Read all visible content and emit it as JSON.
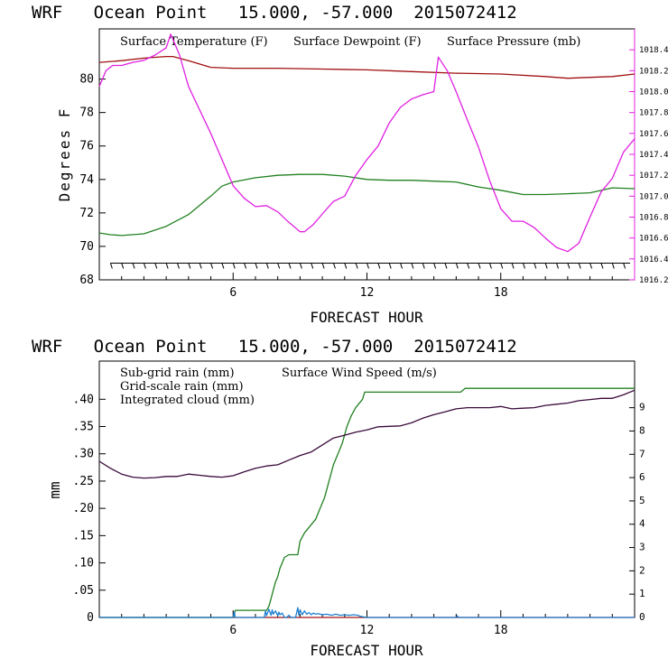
{
  "colors": {
    "temperature": "#a01010",
    "dewpoint": "#208020",
    "pressure": "#e020e0",
    "subgrid": "#a01010",
    "gridscale": "#208020",
    "cloud": "#1e7fd0",
    "wind": "#3a0a3a",
    "axis": "#000000"
  },
  "chart_data": [
    {
      "type": "line",
      "title": "WRF   Ocean Point   15.000, -57.000  2015072412",
      "xlabel": "FORECAST HOUR",
      "ylabel": "Degrees F",
      "xlim": [
        0,
        24
      ],
      "ylim": [
        68,
        83
      ],
      "y2lim": [
        1016.2,
        1018.6
      ],
      "xticks": [
        "6",
        "12",
        "18"
      ],
      "yticks": [
        "68",
        "70",
        "72",
        "74",
        "76",
        "78",
        "80"
      ],
      "y2ticks": [
        "1016.2",
        "1016.4",
        "1016.6",
        "1016.8",
        "1017.0",
        "1017.2",
        "1017.4",
        "1017.6",
        "1017.8",
        "1018.0",
        "1018.2",
        "1018.4"
      ],
      "legend": [
        "Surface Temperature (F)",
        "Surface Dewpoint (F)",
        "Surface Pressure (mb)"
      ],
      "series": [
        {
          "name": "Surface Temperature (F)",
          "axis": "left",
          "x": [
            0,
            1,
            2,
            3,
            3.3,
            4,
            5,
            6,
            8,
            10,
            12,
            14,
            16,
            18,
            20,
            21,
            22,
            23,
            24
          ],
          "values": [
            81.0,
            81.1,
            81.25,
            81.35,
            81.35,
            81.1,
            80.7,
            80.65,
            80.65,
            80.6,
            80.55,
            80.45,
            80.35,
            80.3,
            80.15,
            80.05,
            80.1,
            80.15,
            80.3
          ]
        },
        {
          "name": "Surface Dewpoint (F)",
          "axis": "left",
          "x": [
            0,
            0.5,
            1,
            2,
            3,
            4,
            5,
            5.5,
            6,
            7,
            8,
            9,
            10,
            11,
            12,
            13,
            14,
            15,
            16,
            17,
            18,
            19,
            20,
            21,
            22,
            23,
            24
          ],
          "values": [
            70.8,
            70.7,
            70.65,
            70.75,
            71.2,
            71.9,
            73.0,
            73.6,
            73.85,
            74.1,
            74.25,
            74.3,
            74.3,
            74.2,
            74.0,
            73.95,
            73.95,
            73.9,
            73.85,
            73.55,
            73.35,
            73.1,
            73.1,
            73.15,
            73.2,
            73.5,
            73.45
          ]
        },
        {
          "name": "Surface Pressure (mb)",
          "axis": "right",
          "x": [
            0,
            0.3,
            0.6,
            1,
            1.5,
            2,
            2.5,
            3,
            3.2,
            3.6,
            4,
            5,
            6,
            6.5,
            7,
            7.5,
            8,
            8.5,
            9,
            9.2,
            9.6,
            10,
            10.5,
            11,
            11.5,
            12,
            12.5,
            13,
            13.5,
            14,
            14.5,
            15,
            15.2,
            15.6,
            16,
            16.5,
            17,
            17.5,
            18,
            18.5,
            19,
            19.5,
            20,
            20.5,
            21,
            21.5,
            22,
            22.5,
            23,
            23.5,
            24
          ],
          "values": [
            1018.05,
            1018.2,
            1018.25,
            1018.25,
            1018.28,
            1018.3,
            1018.35,
            1018.42,
            1018.55,
            1018.35,
            1018.05,
            1017.6,
            1017.1,
            1016.98,
            1016.9,
            1016.91,
            1016.85,
            1016.75,
            1016.66,
            1016.66,
            1016.73,
            1016.83,
            1016.95,
            1017.0,
            1017.2,
            1017.35,
            1017.48,
            1017.7,
            1017.85,
            1017.93,
            1017.97,
            1018.0,
            1018.33,
            1018.2,
            1018.0,
            1017.73,
            1017.47,
            1017.15,
            1016.88,
            1016.76,
            1016.76,
            1016.7,
            1016.6,
            1016.51,
            1016.47,
            1016.55,
            1016.8,
            1017.04,
            1017.17,
            1017.42,
            1017.55
          ]
        }
      ],
      "wind_barbs_y": 69,
      "wind_barb_hours": [
        0.5,
        1,
        1.5,
        2,
        2.5,
        3,
        3.5,
        4,
        4.5,
        5,
        5.5,
        6,
        6.5,
        7,
        7.5,
        8,
        8.5,
        9,
        9.5,
        10,
        10.5,
        11,
        11.5,
        12,
        12.5,
        13,
        13.5,
        14,
        14.5,
        15,
        15.5,
        16,
        16.5,
        17,
        17.5,
        18,
        18.5,
        19,
        19.5,
        20,
        20.5,
        21,
        21.5,
        22,
        22.5,
        23,
        23.5
      ]
    },
    {
      "type": "line",
      "title": "WRF   Ocean Point   15.000, -57.000  2015072412",
      "xlabel": "FORECAST HOUR",
      "ylabel": "mm",
      "xlim": [
        0,
        24
      ],
      "ylim": [
        0,
        0.47
      ],
      "y2lim": [
        0,
        11
      ],
      "xticks": [
        "6",
        "12",
        "18"
      ],
      "yticks": [
        "0",
        ".05",
        ".10",
        ".15",
        ".20",
        ".25",
        ".30",
        ".35",
        ".40"
      ],
      "y2ticks": [
        "0",
        "1",
        "2",
        "3",
        "4",
        "5",
        "6",
        "7",
        "8",
        "9"
      ],
      "legend": [
        "Sub-grid rain (mm)",
        "Grid-scale rain (mm)",
        "Integrated cloud (mm)",
        "Surface Wind Speed (m/s)"
      ],
      "series": [
        {
          "name": "Sub-grid rain (mm)",
          "axis": "left",
          "x": [
            0,
            24
          ],
          "values": [
            0,
            0
          ]
        },
        {
          "name": "Grid-scale rain (mm)",
          "axis": "left",
          "x": [
            0,
            6,
            6.1,
            7.5,
            7.6,
            7.7,
            7.8,
            7.9,
            8.0,
            8.1,
            8.3,
            8.5,
            8.9,
            9.0,
            9.2,
            9.5,
            9.7,
            9.9,
            10.1,
            10.3,
            10.5,
            10.7,
            10.9,
            11.1,
            11.3,
            11.5,
            11.8,
            11.9,
            16.2,
            16.4,
            24
          ],
          "values": [
            0,
            0,
            0.013,
            0.013,
            0.02,
            0.035,
            0.05,
            0.065,
            0.075,
            0.09,
            0.11,
            0.115,
            0.115,
            0.14,
            0.155,
            0.17,
            0.18,
            0.2,
            0.22,
            0.25,
            0.28,
            0.3,
            0.32,
            0.35,
            0.37,
            0.385,
            0.4,
            0.413,
            0.413,
            0.42,
            0.42
          ]
        },
        {
          "name": "Integrated cloud (mm)",
          "axis": "left",
          "x": [
            0,
            6.0,
            6.05,
            6.1,
            6.4,
            7.2,
            7.4,
            7.45,
            7.5,
            7.6,
            7.7,
            7.75,
            7.8,
            7.9,
            8.0,
            8.05,
            8.1,
            8.2,
            8.3,
            8.4,
            8.5,
            8.6,
            8.8,
            8.9,
            8.95,
            9.0,
            9.1,
            9.2,
            9.3,
            9.4,
            9.5,
            9.6,
            9.7,
            9.8,
            10.0,
            10.2,
            10.4,
            10.6,
            10.8,
            11.0,
            11.2,
            11.4,
            11.6,
            11.7,
            12,
            16.0,
            16.05,
            16.1,
            16.2,
            24
          ],
          "values": [
            0,
            0,
            0.01,
            0,
            0,
            0,
            0,
            0.012,
            0.003,
            0.015,
            0.004,
            0.014,
            0.006,
            0.012,
            0.003,
            0.01,
            0.005,
            0.008,
            0,
            0,
            0.004,
            0,
            0,
            0.018,
            0.004,
            0.014,
            0.005,
            0.012,
            0.006,
            0.009,
            0.005,
            0.008,
            0.006,
            0.007,
            0.005,
            0.006,
            0.004,
            0.006,
            0.004,
            0.005,
            0.004,
            0.005,
            0.004,
            0.002,
            0,
            0,
            0.003,
            0,
            0,
            0
          ]
        },
        {
          "name": "Surface Wind Speed (m/s)",
          "axis": "right",
          "x": [
            0,
            0.5,
            1,
            1.5,
            2,
            2.5,
            3,
            3.5,
            4,
            4.5,
            5,
            5.5,
            6,
            6.5,
            7,
            7.5,
            8,
            8.5,
            9,
            9.5,
            10,
            10.5,
            11,
            11.5,
            12,
            12.5,
            13,
            13.5,
            14,
            14.5,
            15,
            15.5,
            16,
            16.5,
            17,
            17.5,
            18,
            18.5,
            19,
            19.5,
            20,
            20.5,
            21,
            21.5,
            22,
            22.5,
            23,
            23.5,
            24
          ],
          "values": [
            6.7,
            6.4,
            6.15,
            6.02,
            5.98,
            6.0,
            6.05,
            6.05,
            6.15,
            6.1,
            6.05,
            6.02,
            6.08,
            6.25,
            6.4,
            6.5,
            6.55,
            6.75,
            6.95,
            7.1,
            7.4,
            7.7,
            7.82,
            7.95,
            8.05,
            8.18,
            8.2,
            8.22,
            8.35,
            8.55,
            8.7,
            8.82,
            8.95,
            9.0,
            9.0,
            9.0,
            9.05,
            8.95,
            8.98,
            9.0,
            9.1,
            9.15,
            9.2,
            9.3,
            9.35,
            9.4,
            9.4,
            9.55,
            9.75
          ]
        }
      ]
    }
  ]
}
